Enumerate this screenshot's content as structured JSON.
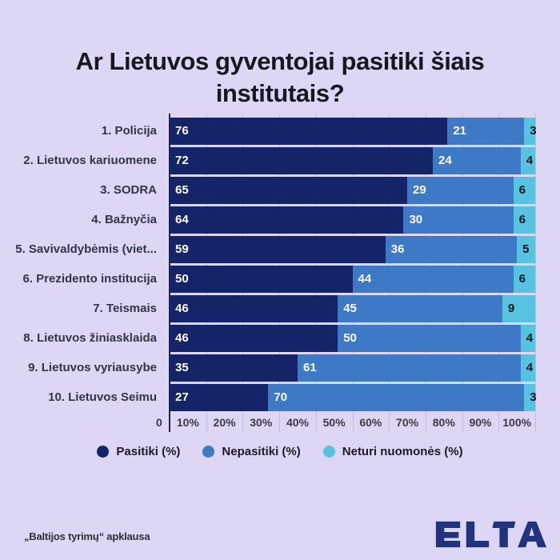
{
  "title": {
    "line1": "Ar Lietuvos gyventojai pasitiki šiais",
    "line2": "institutais?"
  },
  "chart_data": {
    "type": "bar",
    "orientation": "horizontal",
    "stacked": true,
    "title": "Ar Lietuvos gyventojai pasitiki šiais institutais?",
    "categories": [
      "1. Policija",
      "2. Lietuvos kariuomene",
      "3. SODRA",
      "4. Bažnyčia",
      "5. Savivaldybėmis (viet...",
      "6. Prezidento institucija",
      "7. Teismais",
      "8. Lietuvos žiniasklaida",
      "9. Lietuvos vyriausybe",
      "10. Lietuvos Seimu"
    ],
    "series": [
      {
        "name": "Pasitiki (%)",
        "color": "#152468",
        "values": [
          76,
          72,
          65,
          64,
          59,
          50,
          46,
          46,
          35,
          27
        ]
      },
      {
        "name": "Nepasitiki (%)",
        "color": "#3e79c5",
        "values": [
          21,
          24,
          29,
          30,
          36,
          44,
          45,
          50,
          61,
          70
        ]
      },
      {
        "name": "Neturi nuomonės (%)",
        "color": "#57c3e1",
        "values": [
          3,
          4,
          6,
          6,
          5,
          6,
          9,
          4,
          4,
          3
        ]
      }
    ],
    "x_axis": {
      "min": 0,
      "max": 100,
      "tick_labels": [
        "0",
        "10%",
        "20%",
        "30%",
        "40%",
        "50%",
        "60%",
        "70%",
        "80%",
        "90%",
        "100%"
      ],
      "grid": true
    },
    "legend_position": "bottom",
    "value_labels": "inside-start",
    "colors": {
      "background": "#ddd6f4",
      "axis_line": "#24242f",
      "value_on_dark": "#ffffff",
      "value_on_light": "#0d1420"
    }
  },
  "footer": {
    "source": "„Baltijos tyrimų“ apklausa",
    "logo_text": "ELTA",
    "logo_color": "#21337c"
  }
}
